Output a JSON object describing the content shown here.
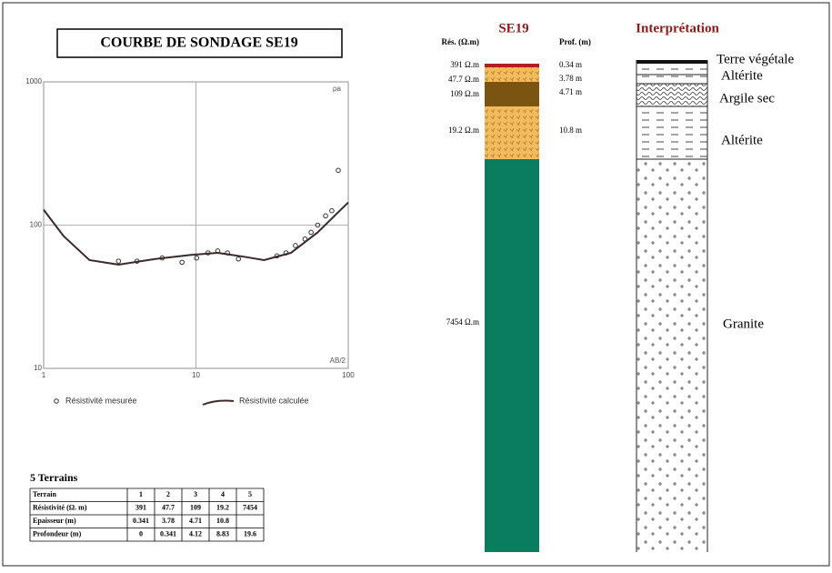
{
  "chart_data": {
    "type": "scatter-line",
    "title": "COURBE DE SONDAGE SE19",
    "xlabel": "AB/2",
    "ylabel": "ρa",
    "xlim": [
      1,
      100
    ],
    "ylim": [
      10,
      1000
    ],
    "xticks": [
      1,
      10,
      100
    ],
    "yticks": [
      10,
      100,
      1000
    ],
    "log_x": true,
    "log_y": true,
    "grid": true,
    "series": [
      {
        "name": "Résistivité mesurée",
        "color": "#333333",
        "marker": "circle",
        "x": [
          3.1,
          4.1,
          6.0,
          8.1,
          10.1,
          12.0,
          13.9,
          16.1,
          19.0,
          34,
          39,
          45,
          52,
          57,
          63,
          71,
          78,
          86
        ],
        "values": [
          56,
          56,
          59,
          55,
          59,
          64,
          66,
          64,
          58,
          61,
          64,
          72,
          80,
          89,
          100,
          116,
          126,
          241
        ]
      },
      {
        "name": "Résistivité calculée",
        "color": "#3a2a2a",
        "marker": "line",
        "x": [
          1,
          1.35,
          2,
          3.1,
          5.4,
          9.3,
          13.9,
          21,
          28,
          42,
          63,
          100
        ],
        "values": [
          128,
          84,
          57,
          53,
          58,
          62,
          64,
          60,
          57,
          64,
          89,
          144
        ]
      }
    ]
  },
  "table": {
    "title": "5 Terrains",
    "header": [
      "Terrain",
      "1",
      "2",
      "3",
      "4",
      "5"
    ],
    "rows": [
      [
        "Résistivité (Ω. m)",
        "391",
        "47.7",
        "109",
        "19.2",
        "7454"
      ],
      [
        "Epaisseur (m)",
        "0.341",
        "3.78",
        "4.71",
        "10.8"
      ],
      [
        "Profondeur (m)",
        "0",
        "0.341",
        "4.12",
        "8.83",
        "19.6"
      ]
    ]
  },
  "column": {
    "title": "SE19",
    "res_header": "Rés. (Ω.m)",
    "depth_header": "Prof. (m)",
    "resistivities": [
      "391 Ω.m",
      "47.7 Ω.m",
      "109 Ω.m",
      "19.2 Ω.m",
      "7454 Ω.m"
    ],
    "depths": [
      "0.34 m",
      "3.78 m",
      "4.71 m",
      "10.8 m"
    ]
  },
  "interpretation": {
    "title": "Interprétation",
    "layers": [
      "Terre végétale",
      "Altérite",
      "Argile sec",
      "Altérite",
      "Granite"
    ]
  }
}
